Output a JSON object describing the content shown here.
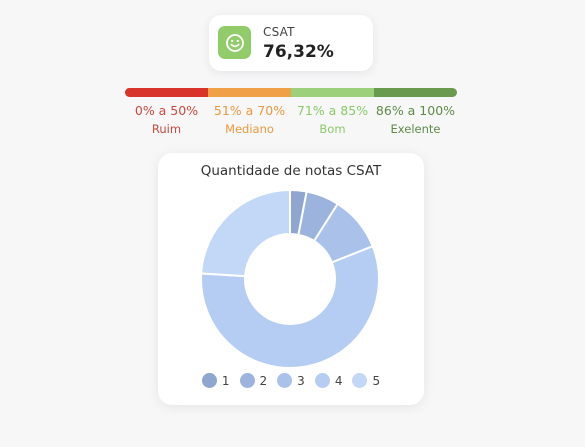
{
  "csat": {
    "title": "CSAT",
    "value": "76,32%",
    "icon": "smiley-icon",
    "icon_color": "#92cc6a"
  },
  "scale": [
    {
      "range": "0% a 50%",
      "name": "Ruim",
      "color": "#d9342b",
      "text_color": "#c94a42"
    },
    {
      "range": "51% a 70%",
      "name": "Mediano",
      "color": "#f0a047",
      "text_color": "#e89a40"
    },
    {
      "range": "71% a 85%",
      "name": "Bom",
      "color": "#9dd07a",
      "text_color": "#8cc96a"
    },
    {
      "range": "86% a 100%",
      "name": "Exelente",
      "color": "#6a9a4e",
      "text_color": "#5f8a48"
    }
  ],
  "chart_data": {
    "type": "pie",
    "variant": "donut",
    "title": "Quantidade de notas CSAT",
    "categories": [
      "1",
      "2",
      "3",
      "4",
      "5"
    ],
    "values": [
      3,
      6,
      10,
      57,
      24
    ],
    "colors": [
      "#8ea6d0",
      "#9bb3dd",
      "#aac2ea",
      "#b6cdf3",
      "#c3d7f7"
    ],
    "legend": "bottom"
  }
}
